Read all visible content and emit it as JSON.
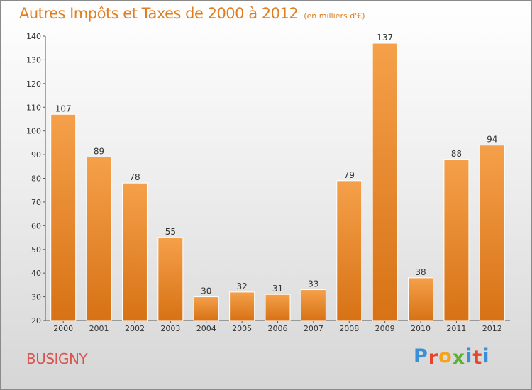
{
  "header": {
    "title": "Autres Impôts et Taxes de 2000 à 2012",
    "subtitle": "(en milliers d'€)"
  },
  "footer": {
    "commune": "BUSIGNY",
    "logo_text": "Proxiti"
  },
  "colors": {
    "title": "#e07f22",
    "commune": "#d9534f",
    "bar_light": "#f5a04a",
    "bar_dark": "#d77215",
    "logo": [
      "#3a8fd6",
      "#e8432b",
      "#f3a31c",
      "#5cb130",
      "#3a8fd6",
      "#e8432b",
      "#3a8fd6"
    ]
  },
  "chart_data": {
    "type": "bar",
    "title": "Autres Impôts et Taxes de 2000 à 2012",
    "subtitle": "(en milliers d'€)",
    "categories": [
      "2000",
      "2001",
      "2002",
      "2003",
      "2004",
      "2005",
      "2006",
      "2007",
      "2008",
      "2009",
      "2010",
      "2011",
      "2012"
    ],
    "values": [
      107,
      89,
      78,
      55,
      30,
      32,
      31,
      33,
      79,
      137,
      38,
      88,
      94
    ],
    "ylim": [
      20,
      140
    ],
    "yticks": [
      20,
      30,
      40,
      50,
      60,
      70,
      80,
      90,
      100,
      110,
      120,
      130,
      140
    ],
    "grid": false,
    "legend": "none"
  }
}
